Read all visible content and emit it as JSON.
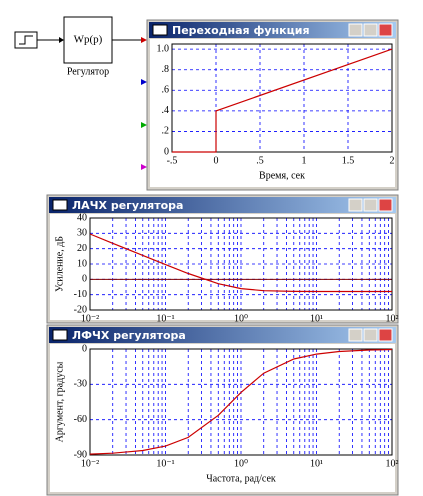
{
  "diagram": {
    "block_label": "Wp(p)",
    "block_caption": "Регулятор"
  },
  "chart_data": [
    {
      "type": "line",
      "title": "Переходная функция",
      "xlabel": "Время, сек",
      "x": [
        -0.5,
        0,
        0,
        2
      ],
      "values": [
        0,
        0,
        0.4,
        1.0
      ],
      "color": "#cc0000",
      "xlim": [
        -0.5,
        2
      ],
      "ylim": [
        0,
        1.05
      ],
      "xticks": [
        {
          "value": -0.5,
          "label": "-.5"
        },
        0,
        {
          "value": 0.5,
          "label": ".5"
        },
        1,
        1.5,
        2
      ],
      "yticks": [
        0,
        {
          "value": 0.2,
          "label": ".2"
        },
        {
          "value": 0.4,
          "label": ".4"
        },
        {
          "value": 0.6,
          "label": ".6"
        },
        {
          "value": 0.8,
          "label": ".8"
        },
        {
          "value": 1,
          "label": "1.0"
        }
      ],
      "grid": true
    },
    {
      "type": "line",
      "title": "ЛАЧХ регулятора",
      "ylabel": "Усиление, дБ",
      "xscale": "log",
      "x": [
        0.01,
        0.02,
        0.05,
        0.1,
        0.2,
        0.5,
        1,
        2,
        5,
        10,
        20,
        50,
        100
      ],
      "values": [
        29.54,
        23.53,
        15.58,
        9.62,
        3.82,
        -2.84,
        -6.02,
        -7.39,
        -7.86,
        -7.93,
        -7.95,
        -7.96,
        -7.96
      ],
      "color": "#cc0000",
      "xlim": [
        0.01,
        100
      ],
      "ylim": [
        -20,
        40
      ],
      "xticks": [
        {
          "value": 0.01,
          "label": "10⁻²"
        },
        {
          "value": 0.1,
          "label": "10⁻¹"
        },
        {
          "value": 1,
          "label": "10⁰"
        },
        {
          "value": 10,
          "label": "10¹"
        },
        {
          "value": 100,
          "label": "10²"
        }
      ],
      "yticks": [
        -20,
        -10,
        0,
        10,
        20,
        30,
        40
      ],
      "grid": true
    },
    {
      "type": "line",
      "title": "ЛФЧХ регулятора",
      "ylabel": "Аргумент, градусы",
      "xlabel": "Частота, рад/сек",
      "xscale": "log",
      "x": [
        0.01,
        0.02,
        0.05,
        0.1,
        0.2,
        0.5,
        1,
        2,
        5,
        10,
        20,
        50,
        100
      ],
      "values": [
        -89.24,
        -88.47,
        -86.19,
        -82.41,
        -75.07,
        -56.31,
        -36.87,
        -20.56,
        -8.53,
        -4.29,
        -2.15,
        -0.86,
        -0.43
      ],
      "color": "#cc0000",
      "xlim": [
        0.01,
        100
      ],
      "ylim": [
        -90,
        0
      ],
      "xticks": [
        {
          "value": 0.01,
          "label": "10⁻²"
        },
        {
          "value": 0.1,
          "label": "10⁻¹"
        },
        {
          "value": 1,
          "label": "10⁰"
        },
        {
          "value": 10,
          "label": "10¹"
        },
        {
          "value": 100,
          "label": "10²"
        }
      ],
      "yticks": [
        -90,
        -60,
        -30,
        0
      ],
      "grid": true
    }
  ]
}
